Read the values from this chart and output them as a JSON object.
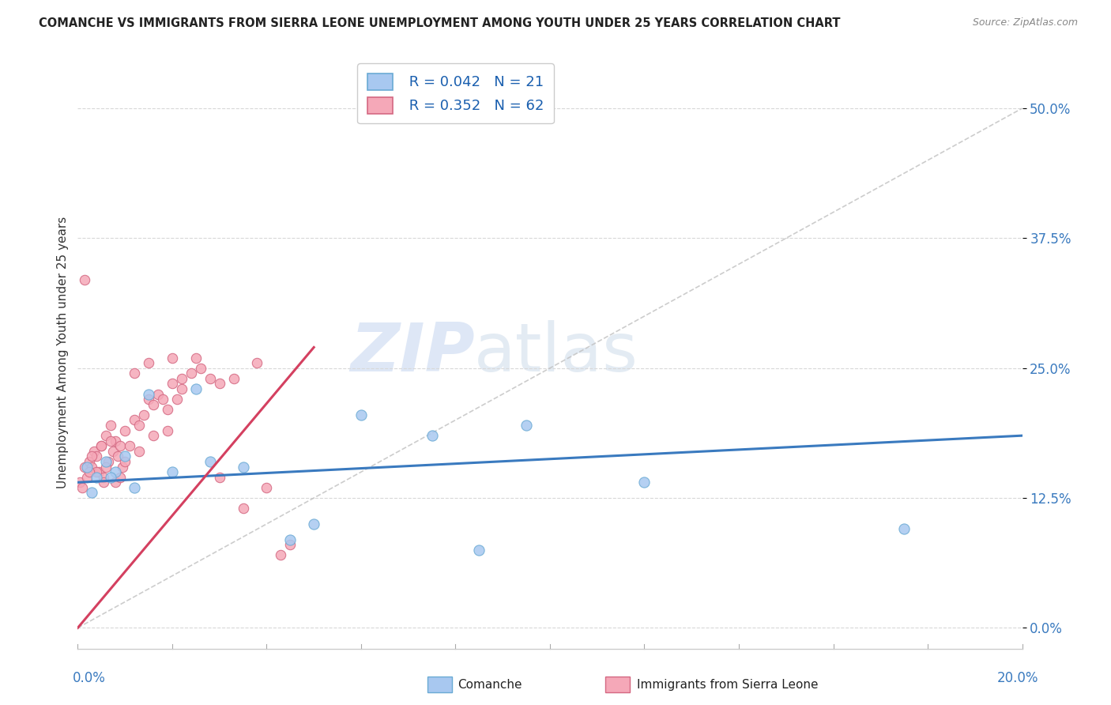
{
  "title": "COMANCHE VS IMMIGRANTS FROM SIERRA LEONE UNEMPLOYMENT AMONG YOUTH UNDER 25 YEARS CORRELATION CHART",
  "source": "Source: ZipAtlas.com",
  "ylabel": "Unemployment Among Youth under 25 years",
  "ytick_labels": [
    "0.0%",
    "12.5%",
    "25.0%",
    "37.5%",
    "50.0%"
  ],
  "ytick_values": [
    0.0,
    12.5,
    25.0,
    37.5,
    50.0
  ],
  "xlim": [
    0.0,
    20.0
  ],
  "ylim": [
    -2.0,
    55.0
  ],
  "comanche_color": "#a8c8f0",
  "comanche_edge": "#6aaad4",
  "sierra_leone_color": "#f5a8b8",
  "sierra_leone_edge": "#d46882",
  "trend_comanche_color": "#3a7abf",
  "trend_sierra_leone_color": "#d44060",
  "trend_line_color": "#c0c0c0",
  "legend_r_comanche": "R = 0.042",
  "legend_n_comanche": "N = 21",
  "legend_r_sierra": "R = 0.352",
  "legend_n_sierra": "N = 62",
  "comanche_x": [
    0.2,
    0.4,
    0.6,
    0.8,
    1.0,
    1.5,
    2.0,
    2.5,
    3.5,
    5.0,
    6.0,
    7.5,
    9.5,
    12.0,
    17.5,
    0.3,
    0.7,
    1.2,
    2.8,
    4.5,
    8.5
  ],
  "comanche_y": [
    15.5,
    14.5,
    16.0,
    15.0,
    16.5,
    22.5,
    15.0,
    23.0,
    15.5,
    10.0,
    20.5,
    18.5,
    19.5,
    14.0,
    9.5,
    13.0,
    14.5,
    13.5,
    16.0,
    8.5,
    7.5
  ],
  "sierra_x": [
    0.05,
    0.1,
    0.15,
    0.2,
    0.25,
    0.3,
    0.35,
    0.4,
    0.45,
    0.5,
    0.55,
    0.6,
    0.65,
    0.7,
    0.75,
    0.8,
    0.85,
    0.9,
    0.95,
    1.0,
    1.1,
    1.2,
    1.3,
    1.4,
    1.5,
    1.6,
    1.7,
    1.8,
    1.9,
    2.0,
    2.1,
    2.2,
    2.4,
    2.6,
    2.8,
    3.0,
    3.3,
    3.5,
    3.8,
    4.0,
    4.3,
    4.5,
    1.2,
    1.5,
    2.0,
    2.5,
    3.0,
    0.3,
    0.5,
    0.7,
    0.4,
    0.6,
    0.8,
    1.0,
    1.3,
    1.6,
    1.9,
    2.2,
    0.25,
    0.15,
    0.55,
    0.9
  ],
  "sierra_y": [
    14.0,
    13.5,
    15.5,
    14.5,
    16.0,
    15.5,
    17.0,
    16.5,
    15.0,
    17.5,
    14.5,
    18.5,
    16.0,
    19.5,
    17.0,
    18.0,
    16.5,
    17.5,
    15.5,
    19.0,
    17.5,
    20.0,
    19.5,
    20.5,
    22.0,
    21.5,
    22.5,
    22.0,
    21.0,
    23.5,
    22.0,
    23.0,
    24.5,
    25.0,
    24.0,
    23.5,
    24.0,
    11.5,
    25.5,
    13.5,
    7.0,
    8.0,
    24.5,
    25.5,
    26.0,
    26.0,
    14.5,
    16.5,
    17.5,
    18.0,
    15.0,
    15.5,
    14.0,
    16.0,
    17.0,
    18.5,
    19.0,
    24.0,
    15.0,
    33.5,
    14.0,
    14.5
  ],
  "watermark_zip": "ZIP",
  "watermark_atlas": "atlas",
  "background_color": "#ffffff",
  "plot_background": "#ffffff"
}
